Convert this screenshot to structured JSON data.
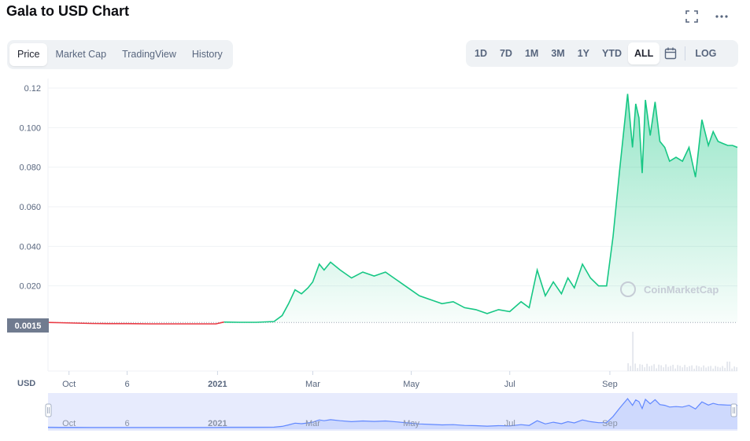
{
  "header": {
    "title": "Gala to USD Chart"
  },
  "tabs": [
    {
      "label": "Price",
      "active": true
    },
    {
      "label": "Market Cap",
      "active": false
    },
    {
      "label": "TradingView",
      "active": false
    },
    {
      "label": "History",
      "active": false
    }
  ],
  "ranges": [
    {
      "label": "1D",
      "active": false
    },
    {
      "label": "7D",
      "active": false
    },
    {
      "label": "1M",
      "active": false
    },
    {
      "label": "3M",
      "active": false
    },
    {
      "label": "1Y",
      "active": false
    },
    {
      "label": "YTD",
      "active": false
    },
    {
      "label": "ALL",
      "active": true
    }
  ],
  "log_label": "LOG",
  "icons": {
    "fullscreen": "fullscreen-icon",
    "more": "more-icon",
    "calendar": "calendar-icon"
  },
  "colors": {
    "up": "#16c784",
    "down": "#ea3943",
    "navigator": "#6188ff",
    "text_muted": "#58667e"
  },
  "currency_label": "USD",
  "watermark": "CoinMarketCap",
  "chart_data": {
    "type": "line",
    "title": "Gala to USD Chart",
    "ylim": [
      0,
      0.12
    ],
    "y_ticks": [
      "0.12",
      "0.100",
      "0.080",
      "0.060",
      "0.040",
      "0.020"
    ],
    "x_ticks": [
      "Oct",
      "6",
      "2021",
      "Mar",
      "May",
      "Jul",
      "Sep"
    ],
    "baseline_label": "0.0015",
    "baseline_value": 0.0015,
    "x": [
      "2020-09-18",
      "2020-09-25",
      "2020-10-05",
      "2020-10-15",
      "2020-10-25",
      "2020-11-06",
      "2020-11-20",
      "2020-12-05",
      "2020-12-20",
      "2020-12-31",
      "2021-01-05",
      "2021-01-15",
      "2021-01-25",
      "2021-02-05",
      "2021-02-10",
      "2021-02-14",
      "2021-02-18",
      "2021-02-22",
      "2021-02-26",
      "2021-03-01",
      "2021-03-05",
      "2021-03-08",
      "2021-03-12",
      "2021-03-18",
      "2021-03-25",
      "2021-04-01",
      "2021-04-08",
      "2021-04-15",
      "2021-04-22",
      "2021-04-29",
      "2021-05-06",
      "2021-05-13",
      "2021-05-20",
      "2021-05-27",
      "2021-06-03",
      "2021-06-10",
      "2021-06-17",
      "2021-06-24",
      "2021-07-01",
      "2021-07-08",
      "2021-07-13",
      "2021-07-18",
      "2021-07-23",
      "2021-07-28",
      "2021-08-02",
      "2021-08-06",
      "2021-08-10",
      "2021-08-15",
      "2021-08-20",
      "2021-08-25",
      "2021-08-30",
      "2021-09-03",
      "2021-09-07",
      "2021-09-12",
      "2021-09-15",
      "2021-09-17",
      "2021-09-19",
      "2021-09-21",
      "2021-09-23",
      "2021-09-26",
      "2021-09-29",
      "2021-10-02",
      "2021-10-05",
      "2021-10-08",
      "2021-10-12",
      "2021-10-16",
      "2021-10-20",
      "2021-10-24",
      "2021-10-28",
      "2021-11-01",
      "2021-11-04",
      "2021-11-07",
      "2021-11-10",
      "2021-11-13",
      "2021-11-16",
      "2021-11-19"
    ],
    "y": [
      0.0015,
      0.0014,
      0.0012,
      0.001,
      0.0009,
      0.0009,
      0.0008,
      0.0008,
      0.0008,
      0.0008,
      0.0017,
      0.0016,
      0.0016,
      0.002,
      0.005,
      0.011,
      0.018,
      0.016,
      0.019,
      0.022,
      0.031,
      0.028,
      0.032,
      0.028,
      0.024,
      0.027,
      0.025,
      0.027,
      0.023,
      0.019,
      0.015,
      0.013,
      0.011,
      0.012,
      0.009,
      0.008,
      0.006,
      0.008,
      0.007,
      0.012,
      0.009,
      0.028,
      0.015,
      0.022,
      0.016,
      0.024,
      0.019,
      0.031,
      0.024,
      0.02,
      0.02,
      0.045,
      0.078,
      0.117,
      0.09,
      0.112,
      0.105,
      0.077,
      0.114,
      0.096,
      0.113,
      0.093,
      0.09,
      0.083,
      0.085,
      0.083,
      0.09,
      0.075,
      0.104,
      0.091,
      0.098,
      0.093,
      0.092,
      0.091,
      0.091,
      0.09
    ]
  },
  "navigator": {
    "x_ticks": [
      "Oct",
      "6",
      "2021",
      "Mar",
      "May",
      "Jul",
      "Sep"
    ]
  }
}
